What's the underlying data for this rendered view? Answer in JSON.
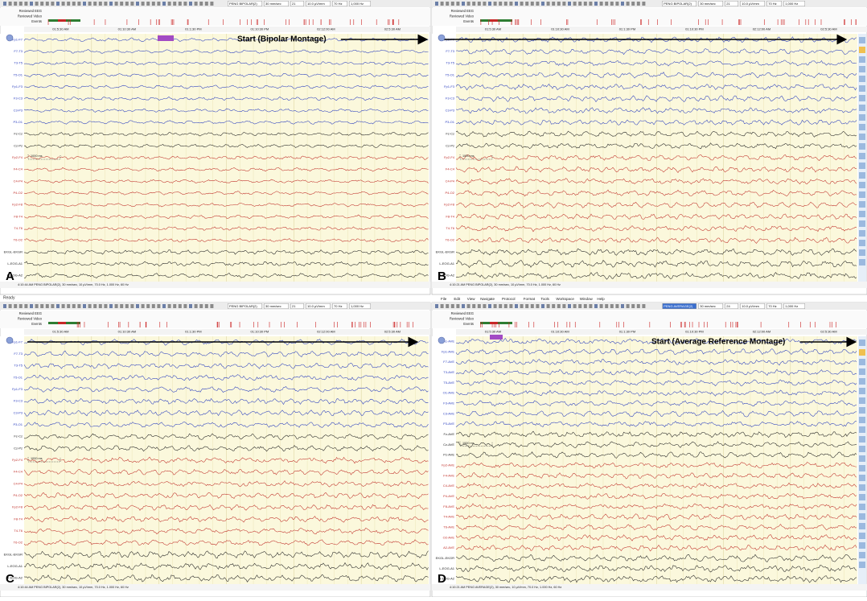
{
  "strip_labels": [
    "Reviewed EEG",
    "Reviewed Video",
    "Events"
  ],
  "menu": [
    "File",
    "Edit",
    "View",
    "Navigate",
    "Protocol",
    "Format",
    "Tools",
    "Workspace",
    "Window",
    "Help"
  ],
  "status": "Ready",
  "scale_marker": "1000 ms",
  "time_labels": [
    "01:5:30 AM",
    "01:10:30 AM",
    "01:1:30 PM",
    "01:10:30 PM",
    "02:12:00 AM",
    "02:5:30 AM"
  ],
  "bipolar_channels": [
    {
      "label": "Fp1-F7",
      "color": "#2b3fbf"
    },
    {
      "label": "F7-T3",
      "color": "#2b3fbf"
    },
    {
      "label": "T3-T5",
      "color": "#2b3fbf"
    },
    {
      "label": "T5-O1",
      "color": "#2b3fbf"
    },
    {
      "label": "Fp1-F3",
      "color": "#2b3fbf"
    },
    {
      "label": "F3-C3",
      "color": "#2b3fbf"
    },
    {
      "label": "C3-P3",
      "color": "#2b3fbf"
    },
    {
      "label": "P3-O1",
      "color": "#2b3fbf"
    },
    {
      "label": "Fz-Cz",
      "color": "#222222"
    },
    {
      "label": "Cz-Pz",
      "color": "#222222"
    },
    {
      "label": "Fp2-F4",
      "color": "#c0302a"
    },
    {
      "label": "F4-C4",
      "color": "#c0302a"
    },
    {
      "label": "C4-P4",
      "color": "#c0302a"
    },
    {
      "label": "P4-O2",
      "color": "#c0302a"
    },
    {
      "label": "Fp2-F8",
      "color": "#c0302a"
    },
    {
      "label": "F8-T4",
      "color": "#c0302a"
    },
    {
      "label": "T4-T6",
      "color": "#c0302a"
    },
    {
      "label": "T6-O2",
      "color": "#c0302a"
    },
    {
      "label": "EKGL-EKGR",
      "color": "#222222"
    },
    {
      "label": "L-EOG-A1",
      "color": "#222222"
    },
    {
      "label": "R-EOG-A2",
      "color": "#222222"
    }
  ],
  "average_channels": [
    {
      "label": "A1-AVE",
      "color": "#2b3fbf"
    },
    {
      "label": "Fp1-AVE",
      "color": "#2b3fbf"
    },
    {
      "label": "F7-AVE",
      "color": "#2b3fbf"
    },
    {
      "label": "T3-AVE",
      "color": "#2b3fbf"
    },
    {
      "label": "T5-AVE",
      "color": "#2b3fbf"
    },
    {
      "label": "O1-AVE",
      "color": "#2b3fbf"
    },
    {
      "label": "F3-AVE",
      "color": "#2b3fbf"
    },
    {
      "label": "C3-AVE",
      "color": "#2b3fbf"
    },
    {
      "label": "P3-AVE",
      "color": "#2b3fbf"
    },
    {
      "label": "Fz-AVE",
      "color": "#222222"
    },
    {
      "label": "Cz-AVE",
      "color": "#222222"
    },
    {
      "label": "Pz-AVE",
      "color": "#222222"
    },
    {
      "label": "Fp2-AVE",
      "color": "#c0302a"
    },
    {
      "label": "F4-AVE",
      "color": "#c0302a"
    },
    {
      "label": "C4-AVE",
      "color": "#c0302a"
    },
    {
      "label": "P4-AVE",
      "color": "#c0302a"
    },
    {
      "label": "F8-AVE",
      "color": "#c0302a"
    },
    {
      "label": "T4-AVE",
      "color": "#c0302a"
    },
    {
      "label": "T6-AVE",
      "color": "#c0302a"
    },
    {
      "label": "O2-AVE",
      "color": "#c0302a"
    },
    {
      "label": "A2-AVE",
      "color": "#c0302a"
    },
    {
      "label": "EKGL-EKGR",
      "color": "#222222"
    },
    {
      "label": "L-EOG-A1",
      "color": "#222222"
    },
    {
      "label": "R-EOG-A2",
      "color": "#222222"
    }
  ],
  "panels": [
    {
      "letter": "A",
      "montage": "PENG BIPOLAR(2)",
      "speed": "30 mm/sec",
      "count": "21",
      "sensitivity": "10.0 µV/mm",
      "hff": "70 Hz",
      "lff": "1,000 Hz",
      "annotation": "Start (Bipolar Montage)",
      "footer": "4:10:44 AM PENG BIPOLAR(2), 30 mm/sec, 10 µV/mm, 70.0 Hz, 1.000 Hz, 60 Hz"
    },
    {
      "letter": "B",
      "montage": "PENG BIPOLAR(2)",
      "speed": "30 mm/sec",
      "count": "21",
      "sensitivity": "10.0 µV/mm",
      "hff": "70 Hz",
      "lff": "1,000 Hz",
      "footer": "4:10:21 AM PENG BIPOLAR(2), 30 mm/sec, 10 µV/mm, 70.0 Hz, 1.000 Hz, 60 Hz"
    },
    {
      "letter": "C",
      "montage": "PENG BIPOLAR(2)",
      "speed": "30 mm/sec",
      "count": "21",
      "sensitivity": "10.0 µV/mm",
      "hff": "70 Hz",
      "lff": "1,000 Hz",
      "footer": "4:10:44 AM PENG BIPOLAR(2), 30 mm/sec, 10 µV/mm, 70.0 Hz, 1.000 Hz, 60 Hz"
    },
    {
      "letter": "D",
      "montage": "PENG AVERAGE(2)",
      "speed": "30 mm/sec",
      "count": "24",
      "sensitivity": "10.0 µV/mm",
      "hff": "70 Hz",
      "lff": "1,000 Hz",
      "annotation": "Start (Average Reference Montage)",
      "footer": "4:10:21 AM PENG AVERAGE(2), 30 mm/sec, 10 µV/mm, 70.0 Hz, 1.000 Hz, 60 Hz"
    }
  ]
}
